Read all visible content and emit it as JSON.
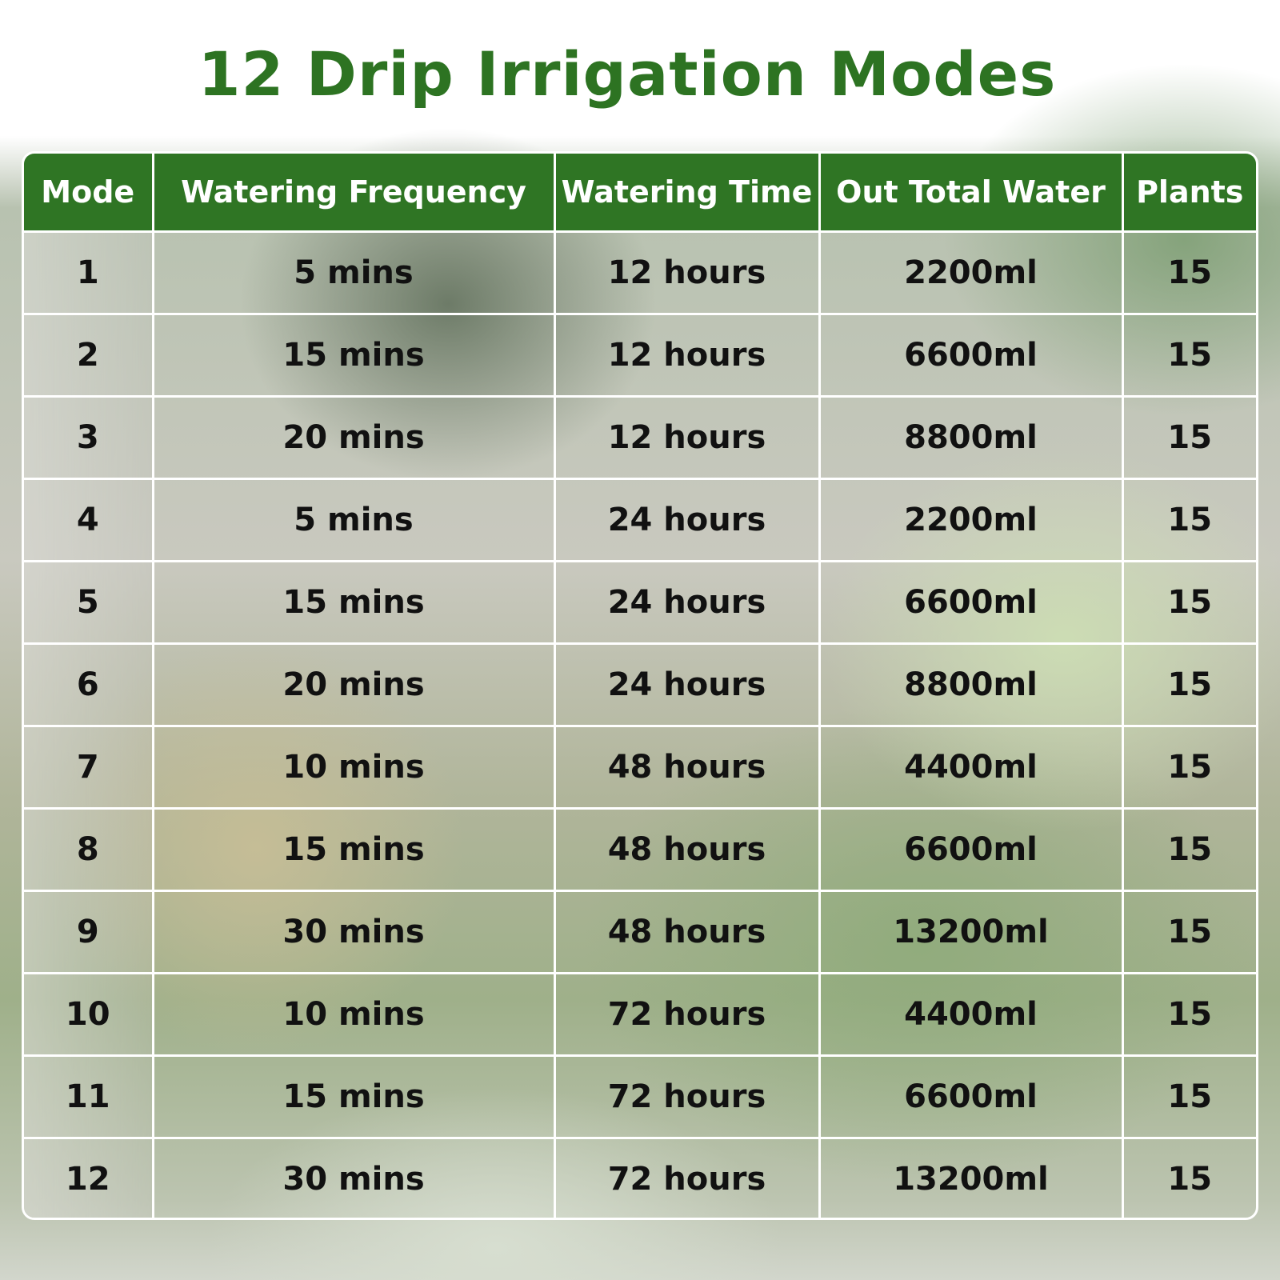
{
  "title": "12 Drip Irrigation Modes",
  "colors": {
    "title_green": "#2d7322",
    "header_green": "#2f7524",
    "cell_text": "#111111"
  },
  "table": {
    "headers": [
      "Mode",
      "Watering Frequency",
      "Watering Time",
      "Out Total Water",
      "Plants"
    ],
    "rows": [
      [
        "1",
        "5 mins",
        "12 hours",
        "2200ml",
        "15"
      ],
      [
        "2",
        "15 mins",
        "12 hours",
        "6600ml",
        "15"
      ],
      [
        "3",
        "20 mins",
        "12 hours",
        "8800ml",
        "15"
      ],
      [
        "4",
        "5 mins",
        "24 hours",
        "2200ml",
        "15"
      ],
      [
        "5",
        "15 mins",
        "24 hours",
        "6600ml",
        "15"
      ],
      [
        "6",
        "20 mins",
        "24 hours",
        "8800ml",
        "15"
      ],
      [
        "7",
        "10 mins",
        "48 hours",
        "4400ml",
        "15"
      ],
      [
        "8",
        "15 mins",
        "48 hours",
        "6600ml",
        "15"
      ],
      [
        "9",
        "30 mins",
        "48 hours",
        "13200ml",
        "15"
      ],
      [
        "10",
        "10 mins",
        "72 hours",
        "4400ml",
        "15"
      ],
      [
        "11",
        "15 mins",
        "72 hours",
        "6600ml",
        "15"
      ],
      [
        "12",
        "30 mins",
        "72 hours",
        "13200ml",
        "15"
      ]
    ]
  }
}
